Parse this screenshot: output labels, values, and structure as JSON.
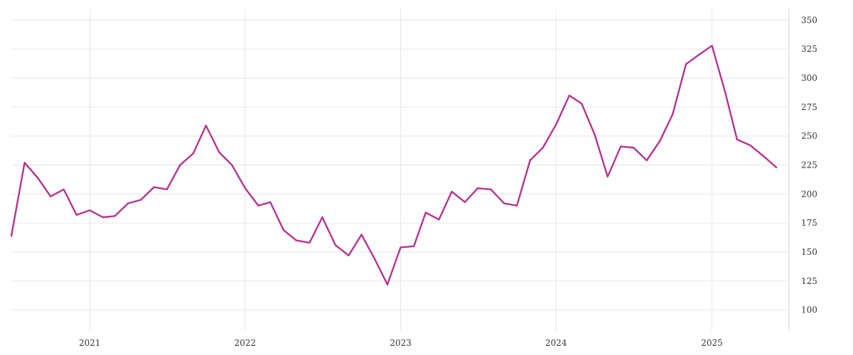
{
  "chart_data": {
    "type": "line",
    "title": "",
    "xlabel": "",
    "ylabel": "",
    "line_color": "#b5348e",
    "grid": true,
    "y_axis_side": "right",
    "ylim": [
      82,
      360
    ],
    "xlim": [
      "2020-07-01",
      "2025-07-01"
    ],
    "y_ticks": [
      100,
      125,
      150,
      175,
      200,
      225,
      250,
      275,
      300,
      325,
      350
    ],
    "x_ticks": [
      {
        "label": "2021",
        "date": "2021-01-01"
      },
      {
        "label": "2022",
        "date": "2022-01-01"
      },
      {
        "label": "2023",
        "date": "2023-01-01"
      },
      {
        "label": "2024",
        "date": "2024-01-01"
      },
      {
        "label": "2025",
        "date": "2025-01-01"
      }
    ],
    "series": [
      {
        "points": [
          [
            "2020-07-01",
            164
          ],
          [
            "2020-08-01",
            227
          ],
          [
            "2020-09-01",
            214
          ],
          [
            "2020-10-01",
            198
          ],
          [
            "2020-11-01",
            204
          ],
          [
            "2020-12-01",
            182
          ],
          [
            "2021-01-01",
            186
          ],
          [
            "2021-02-01",
            180
          ],
          [
            "2021-03-01",
            181
          ],
          [
            "2021-04-01",
            192
          ],
          [
            "2021-05-01",
            195
          ],
          [
            "2021-06-01",
            206
          ],
          [
            "2021-07-01",
            204
          ],
          [
            "2021-08-01",
            225
          ],
          [
            "2021-09-01",
            235
          ],
          [
            "2021-10-01",
            259
          ],
          [
            "2021-11-01",
            236
          ],
          [
            "2021-12-01",
            225
          ],
          [
            "2022-01-01",
            205
          ],
          [
            "2022-02-01",
            190
          ],
          [
            "2022-03-01",
            193
          ],
          [
            "2022-04-01",
            169
          ],
          [
            "2022-05-01",
            160
          ],
          [
            "2022-06-01",
            158
          ],
          [
            "2022-07-01",
            180
          ],
          [
            "2022-08-01",
            156
          ],
          [
            "2022-09-01",
            147
          ],
          [
            "2022-10-01",
            165
          ],
          [
            "2022-11-01",
            144
          ],
          [
            "2022-12-01",
            122
          ],
          [
            "2023-01-01",
            154
          ],
          [
            "2023-02-01",
            155
          ],
          [
            "2023-03-01",
            184
          ],
          [
            "2023-04-01",
            178
          ],
          [
            "2023-05-01",
            202
          ],
          [
            "2023-06-01",
            193
          ],
          [
            "2023-07-01",
            205
          ],
          [
            "2023-08-01",
            204
          ],
          [
            "2023-09-01",
            192
          ],
          [
            "2023-10-01",
            190
          ],
          [
            "2023-11-01",
            229
          ],
          [
            "2023-12-01",
            240
          ],
          [
            "2024-01-01",
            260
          ],
          [
            "2024-02-01",
            285
          ],
          [
            "2024-03-01",
            278
          ],
          [
            "2024-04-01",
            251
          ],
          [
            "2024-05-01",
            215
          ],
          [
            "2024-06-01",
            241
          ],
          [
            "2024-07-01",
            240
          ],
          [
            "2024-08-01",
            229
          ],
          [
            "2024-09-01",
            246
          ],
          [
            "2024-10-01",
            269
          ],
          [
            "2024-11-01",
            312
          ],
          [
            "2024-12-01",
            320
          ],
          [
            "2025-01-01",
            328
          ],
          [
            "2025-02-01",
            288
          ],
          [
            "2025-03-01",
            247
          ],
          [
            "2025-04-01",
            242
          ],
          [
            "2025-05-01",
            233
          ],
          [
            "2025-06-01",
            223
          ]
        ]
      }
    ]
  }
}
